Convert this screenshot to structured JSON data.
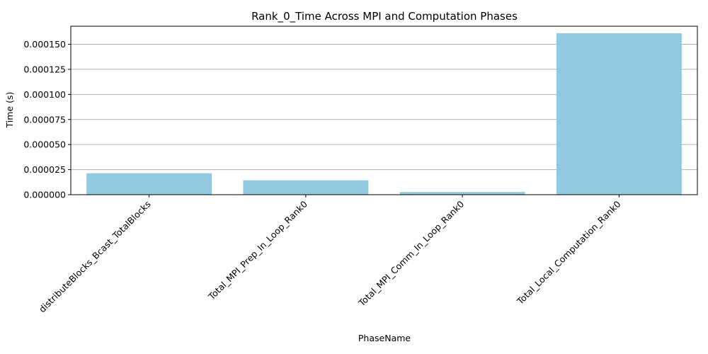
{
  "chart_data": {
    "type": "bar",
    "title": "Rank_0_Time Across MPI and Computation Phases",
    "xlabel": "PhaseName",
    "ylabel": "Time (s)",
    "categories": [
      "distributeBlocks_Bcast_TotalBlocks",
      "Total_MPI_Prep_In_Loop_Rank0",
      "Total_MPI_Comm_In_Loop_Rank0",
      "Total_Local_Computation_Rank0"
    ],
    "values": [
      2.14e-05,
      1.43e-05,
      2.7e-06,
      0.000161
    ],
    "ylim": [
      0,
      0.000168
    ],
    "yticks": [
      0,
      2.5e-05,
      5e-05,
      7.5e-05,
      0.0001,
      0.000125,
      0.00015
    ],
    "ytick_labels": [
      "0.000000",
      "0.000025",
      "0.000050",
      "0.000075",
      "0.000100",
      "0.000125",
      "0.000150"
    ],
    "grid": "y",
    "bar_color": "#92c9e0",
    "grid_color": "#b0b0b0"
  }
}
